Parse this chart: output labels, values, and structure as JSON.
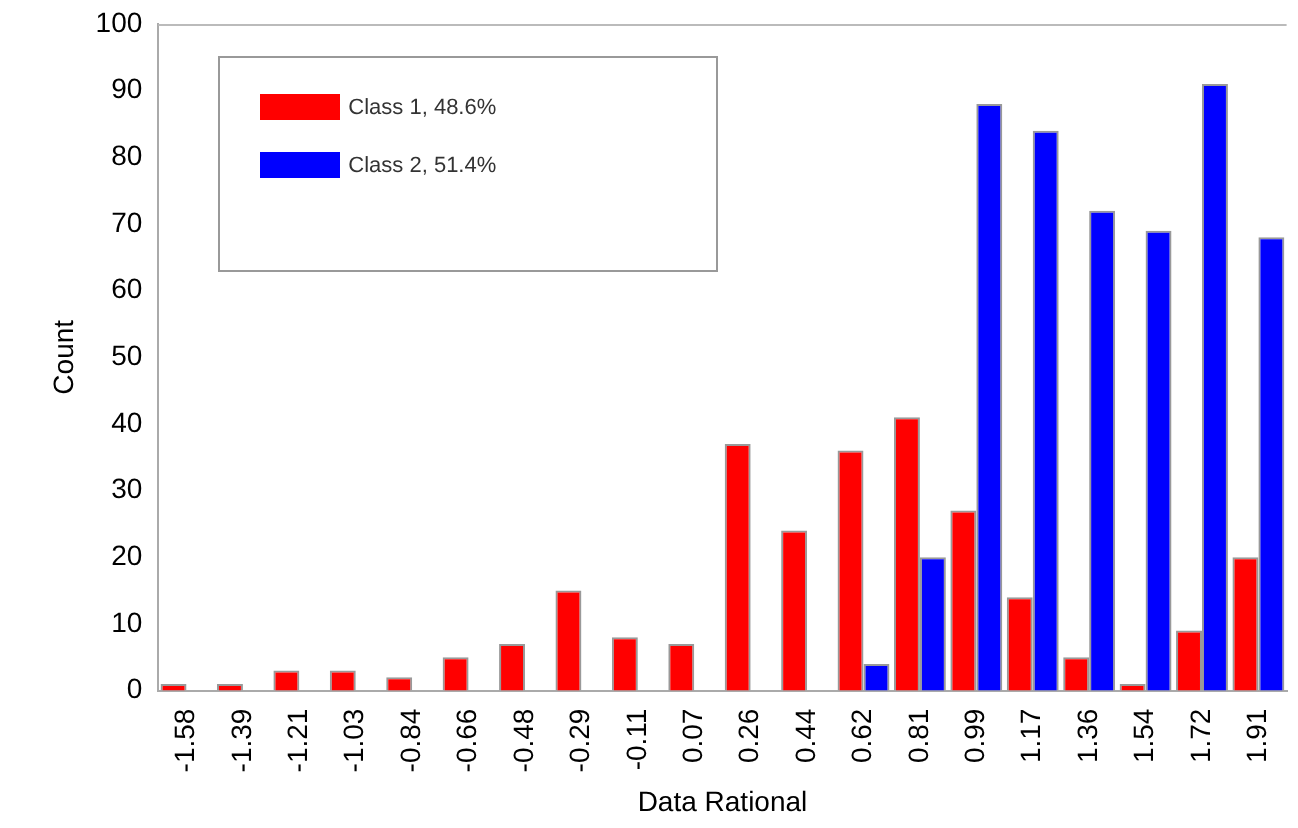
{
  "chart_data": {
    "type": "bar",
    "xlabel": "Data Rational",
    "ylabel": "Count",
    "categories": [
      "-1.58",
      "-1.39",
      "-1.21",
      "-1.03",
      "-0.84",
      "-0.66",
      "-0.48",
      "-0.29",
      "-0.11",
      "0.07",
      "0.26",
      "0.44",
      "0.62",
      "0.81",
      "0.99",
      "1.17",
      "1.36",
      "1.54",
      "1.72",
      "1.91"
    ],
    "series": [
      {
        "name": "Class 1, 48.6%",
        "color": "#ff0000",
        "values": [
          1,
          1,
          3,
          3,
          2,
          5,
          7,
          15,
          8,
          7,
          37,
          24,
          36,
          41,
          27,
          14,
          5,
          1,
          9,
          20
        ]
      },
      {
        "name": "Class 2, 51.4%",
        "color": "#0000ff",
        "values": [
          null,
          null,
          null,
          null,
          null,
          null,
          null,
          null,
          null,
          null,
          null,
          null,
          4,
          20,
          88,
          84,
          72,
          69,
          91,
          68
        ]
      }
    ],
    "ylim": [
      0,
      100
    ],
    "yticks": [
      0,
      10,
      20,
      30,
      40,
      50,
      60,
      70,
      80,
      90,
      100
    ],
    "grid": false,
    "legend": "top left"
  }
}
